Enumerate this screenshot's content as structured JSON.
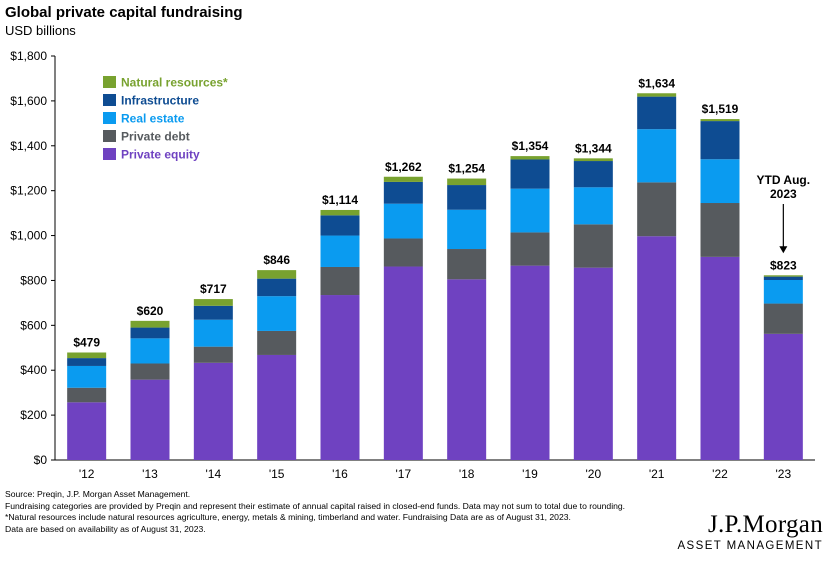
{
  "chart_data": {
    "type": "bar",
    "stacked": true,
    "title": "Global private capital fundraising",
    "subtitle": "USD billions",
    "categories": [
      "'12",
      "'13",
      "'14",
      "'15",
      "'16",
      "'17",
      "'18",
      "'19",
      "'20",
      "'21",
      "'22",
      "'23"
    ],
    "series": [
      {
        "name": "Private equity",
        "color": "#6f42c1",
        "values": [
          257,
          358,
          433,
          468,
          735,
          862,
          805,
          866,
          857,
          997,
          905,
          562
        ]
      },
      {
        "name": "Private debt",
        "color": "#565a5e",
        "values": [
          65,
          72,
          72,
          107,
          125,
          125,
          135,
          148,
          193,
          240,
          240,
          135
        ]
      },
      {
        "name": "Real estate",
        "color": "#0a9bf0",
        "values": [
          97,
          112,
          120,
          155,
          140,
          155,
          175,
          195,
          165,
          237,
          195,
          105
        ]
      },
      {
        "name": "Infrastructure",
        "color": "#0e4c92",
        "values": [
          35,
          48,
          62,
          78,
          90,
          97,
          110,
          130,
          117,
          145,
          170,
          15
        ]
      },
      {
        "name": "Natural resources*",
        "color": "#78a22f",
        "values": [
          25,
          30,
          30,
          38,
          24,
          23,
          29,
          15,
          12,
          15,
          9,
          6
        ]
      }
    ],
    "totals": [
      "$479",
      "$620",
      "$717",
      "$846",
      "$1,114",
      "$1,262",
      "$1,254",
      "$1,354",
      "$1,344",
      "$1,634",
      "$1,519",
      "$823"
    ],
    "ylim": [
      0,
      1800
    ],
    "yticks": [
      "$0",
      "$200",
      "$400",
      "$600",
      "$800",
      "$1,000",
      "$1,200",
      "$1,400",
      "$1,600",
      "$1,800"
    ],
    "ytick_values": [
      0,
      200,
      400,
      600,
      800,
      1000,
      1200,
      1400,
      1600,
      1800
    ],
    "legend_order": [
      "Natural resources*",
      "Infrastructure",
      "Real estate",
      "Private debt",
      "Private equity"
    ],
    "legend_placement": "top-left",
    "annotation": {
      "lines": [
        "YTD Aug.",
        "2023"
      ],
      "category": "'23"
    },
    "grid": false
  },
  "footnotes": [
    "Source: Preqin, J.P. Morgan Asset Management.",
    "Fundraising categories are provided by Preqin and represent their estimate of annual capital raised in closed-end funds. Data may not sum to total due to rounding.",
    "*Natural resources include natural resources agriculture, energy, metals & mining, timberland and water.  Fundraising Data are as of August 31, 2023.",
    "Data are based on availability as of August 31, 2023."
  ],
  "logo": {
    "main": "J.P.Morgan",
    "sub": "ASSET MANAGEMENT"
  }
}
